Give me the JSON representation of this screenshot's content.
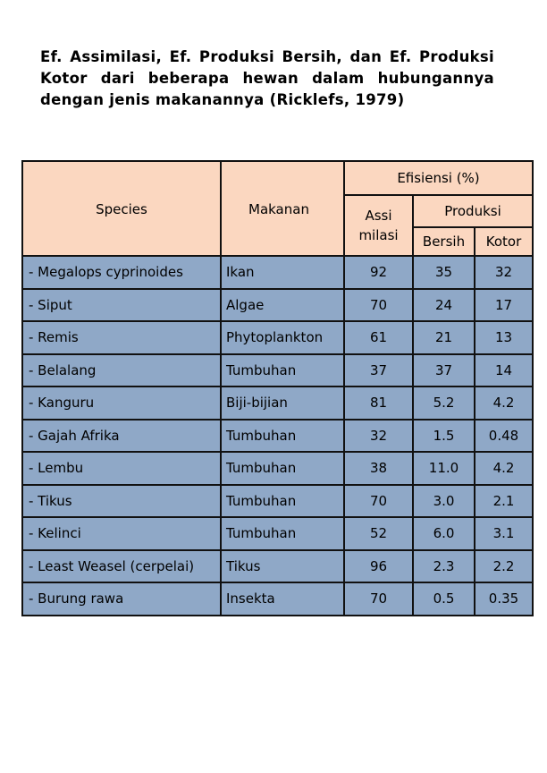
{
  "title": "Ef. Assimilasi, Ef. Produksi Bersih, dan Ef. Produksi Kotor dari beberapa hewan dalam hubungannya dengan jenis makanannya (Ricklefs, 1979)",
  "table": {
    "headers": {
      "species": "Species",
      "makanan": "Makanan",
      "efisiensi": "Efisiensi (%)",
      "assi_line1": "Assi",
      "assi_line2": "milasi",
      "produksi": "Produksi",
      "bersih": "Bersih",
      "kotor": "Kotor"
    },
    "rows": [
      {
        "species": "- Megalops cyprinoides",
        "makanan": "Ikan",
        "asimilasi": "92",
        "bersih": "35",
        "kotor": "32"
      },
      {
        "species": "- Siput",
        "makanan": "Algae",
        "asimilasi": "70",
        "bersih": "24",
        "kotor": "17"
      },
      {
        "species": "- Remis",
        "makanan": "Phytoplankton",
        "asimilasi": "61",
        "bersih": "21",
        "kotor": "13"
      },
      {
        "species": "- Belalang",
        "makanan": "Tumbuhan",
        "asimilasi": "37",
        "bersih": "37",
        "kotor": "14"
      },
      {
        "species": "- Kanguru",
        "makanan": "Biji-bijian",
        "asimilasi": "81",
        "bersih": "5.2",
        "kotor": "4.2"
      },
      {
        "species": "- Gajah Afrika",
        "makanan": "Tumbuhan",
        "asimilasi": "32",
        "bersih": "1.5",
        "kotor": "0.48"
      },
      {
        "species": "- Lembu",
        "makanan": "Tumbuhan",
        "asimilasi": "38",
        "bersih": "11.0",
        "kotor": "4.2"
      },
      {
        "species": "- Tikus",
        "makanan": "Tumbuhan",
        "asimilasi": "70",
        "bersih": "3.0",
        "kotor": "2.1"
      },
      {
        "species": "- Kelinci",
        "makanan": "Tumbuhan",
        "asimilasi": "52",
        "bersih": "6.0",
        "kotor": "3.1"
      },
      {
        "species": "- Least Weasel (cerpelai)",
        "makanan": "Tikus",
        "asimilasi": "96",
        "bersih": "2.3",
        "kotor": "2.2"
      },
      {
        "species": "- Burung rawa",
        "makanan": "Insekta",
        "asimilasi": "70",
        "bersih": "0.5",
        "kotor": "0.35"
      }
    ]
  },
  "colors": {
    "header_background": "#fbd7c0",
    "body_background": "#8fa8c7",
    "border": "#111111"
  }
}
